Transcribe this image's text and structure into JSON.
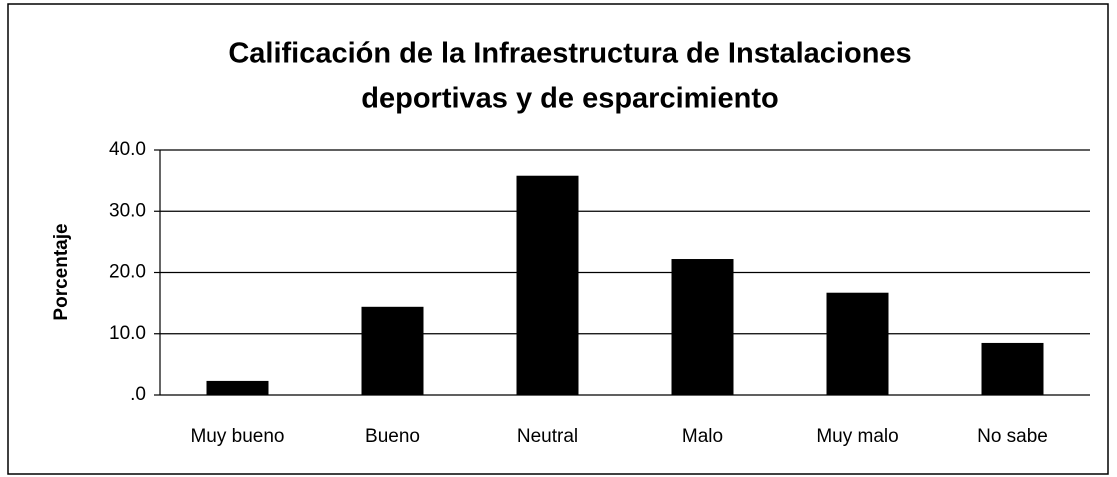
{
  "chart_data": {
    "type": "bar",
    "title": [
      "Calificación de la Infraestructura de Instalaciones",
      "deportivas y de esparcimiento"
    ],
    "y_label": "Porcentaje",
    "categories": [
      "Muy bueno",
      "Bueno",
      "Neutral",
      "Malo",
      "Muy malo",
      "No sabe"
    ],
    "values": [
      2.3,
      14.4,
      35.8,
      22.2,
      16.7,
      8.5
    ],
    "color": "#000000",
    "ylim": [
      0,
      40
    ],
    "yticks": [
      {
        "value": 0,
        "label": ".0"
      },
      {
        "value": 10,
        "label": "10.0"
      },
      {
        "value": 20,
        "label": "20.0"
      },
      {
        "value": 30,
        "label": "30.0"
      },
      {
        "value": 40,
        "label": "40.0"
      }
    ],
    "grid": true
  }
}
